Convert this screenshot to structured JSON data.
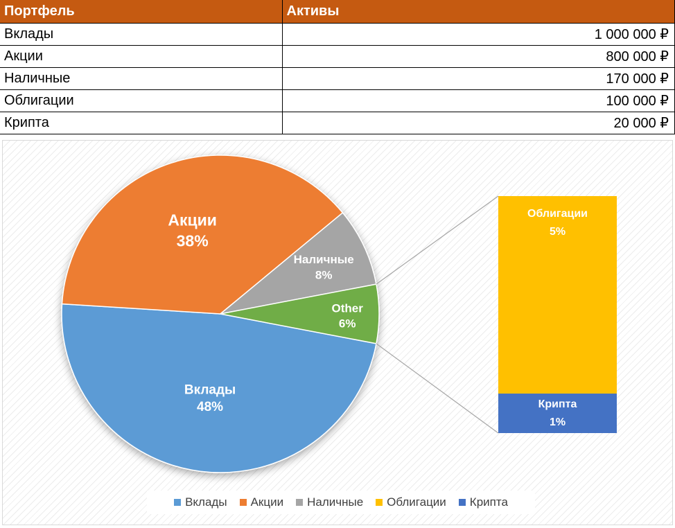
{
  "table": {
    "headers": [
      "Портфель",
      "Активы"
    ],
    "rows": [
      {
        "name": "Вклады",
        "value": "1 000 000 ₽"
      },
      {
        "name": "Акции",
        "value": "800 000 ₽"
      },
      {
        "name": "Наличные",
        "value": "170 000 ₽"
      },
      {
        "name": "Облигации",
        "value": "100 000 ₽"
      },
      {
        "name": "Крипта",
        "value": "20 000 ₽"
      }
    ]
  },
  "chart_data": {
    "type": "pie",
    "subtype": "bar-of-pie",
    "slices": [
      {
        "label": "Вклады",
        "value": 48,
        "color": "#5b9bd5"
      },
      {
        "label": "Акции",
        "value": 38,
        "color": "#ed7d31"
      },
      {
        "label": "Наличные",
        "value": 8,
        "color": "#a5a5a5"
      },
      {
        "label": "Other",
        "value": 6,
        "color": "#70ad47"
      }
    ],
    "other_breakdown": [
      {
        "label": "Облигации",
        "value": 5,
        "color": "#ffc000"
      },
      {
        "label": "Крипта",
        "value": 1,
        "color": "#4472c4"
      }
    ],
    "data_labels": {
      "Вклады": "48%",
      "Акции": "38%",
      "Наличные": "8%",
      "Other": "6%",
      "Облигации": "5%",
      "Крипта": "1%"
    },
    "legend": {
      "position": "bottom",
      "items": [
        {
          "label": "Вклады",
          "color": "#5b9bd5"
        },
        {
          "label": "Акции",
          "color": "#ed7d31"
        },
        {
          "label": "Наличные",
          "color": "#a5a5a5"
        },
        {
          "label": "Облигации",
          "color": "#ffc000"
        },
        {
          "label": "Крипта",
          "color": "#4472c4"
        }
      ]
    }
  }
}
